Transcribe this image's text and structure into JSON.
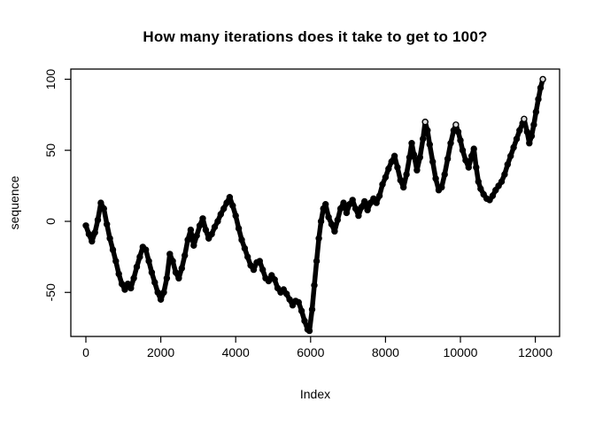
{
  "chart_data": {
    "type": "scatter",
    "title": "How many iterations does it take to get to 100?",
    "xlabel": "Index",
    "ylabel": "sequence",
    "x_ticks": [
      0,
      2000,
      4000,
      6000,
      8000,
      10000,
      12000
    ],
    "y_ticks": [
      -50,
      0,
      50,
      100
    ],
    "xlim": [
      -390,
      12690
    ],
    "ylim": [
      -84,
      107
    ],
    "grid": false,
    "legend_position": "none",
    "marker": "open-circle",
    "point_color": "#000000",
    "background_color": "#ffffff",
    "series": [
      {
        "name": "sequence",
        "points": [
          [
            0,
            -3
          ],
          [
            80,
            -9
          ],
          [
            160,
            -14
          ],
          [
            240,
            -8
          ],
          [
            320,
            1
          ],
          [
            400,
            13
          ],
          [
            480,
            9
          ],
          [
            560,
            -2
          ],
          [
            640,
            -12
          ],
          [
            720,
            -20
          ],
          [
            800,
            -28
          ],
          [
            880,
            -37
          ],
          [
            960,
            -44
          ],
          [
            1040,
            -48
          ],
          [
            1120,
            -44
          ],
          [
            1200,
            -47
          ],
          [
            1280,
            -40
          ],
          [
            1360,
            -32
          ],
          [
            1440,
            -25
          ],
          [
            1520,
            -18
          ],
          [
            1600,
            -20
          ],
          [
            1680,
            -28
          ],
          [
            1760,
            -36
          ],
          [
            1840,
            -43
          ],
          [
            1920,
            -50
          ],
          [
            2000,
            -55
          ],
          [
            2080,
            -50
          ],
          [
            2160,
            -40
          ],
          [
            2240,
            -23
          ],
          [
            2320,
            -28
          ],
          [
            2400,
            -36
          ],
          [
            2480,
            -40
          ],
          [
            2560,
            -33
          ],
          [
            2640,
            -24
          ],
          [
            2720,
            -13
          ],
          [
            2800,
            -6
          ],
          [
            2880,
            -17
          ],
          [
            2960,
            -10
          ],
          [
            3040,
            -3
          ],
          [
            3120,
            2
          ],
          [
            3200,
            -6
          ],
          [
            3280,
            -12
          ],
          [
            3360,
            -9
          ],
          [
            3440,
            -4
          ],
          [
            3520,
            0
          ],
          [
            3600,
            5
          ],
          [
            3680,
            9
          ],
          [
            3760,
            13
          ],
          [
            3840,
            17
          ],
          [
            3920,
            11
          ],
          [
            4000,
            4
          ],
          [
            4080,
            -5
          ],
          [
            4160,
            -13
          ],
          [
            4240,
            -19
          ],
          [
            4320,
            -25
          ],
          [
            4400,
            -31
          ],
          [
            4480,
            -34
          ],
          [
            4560,
            -29
          ],
          [
            4640,
            -28
          ],
          [
            4720,
            -34
          ],
          [
            4800,
            -40
          ],
          [
            4880,
            -42
          ],
          [
            4960,
            -38
          ],
          [
            5040,
            -41
          ],
          [
            5120,
            -47
          ],
          [
            5200,
            -50
          ],
          [
            5280,
            -48
          ],
          [
            5360,
            -51
          ],
          [
            5440,
            -55
          ],
          [
            5520,
            -59
          ],
          [
            5600,
            -56
          ],
          [
            5680,
            -57
          ],
          [
            5760,
            -63
          ],
          [
            5840,
            -70
          ],
          [
            5920,
            -76
          ],
          [
            5970,
            -77
          ],
          [
            6040,
            -62
          ],
          [
            6100,
            -45
          ],
          [
            6160,
            -28
          ],
          [
            6220,
            -12
          ],
          [
            6280,
            0
          ],
          [
            6340,
            9
          ],
          [
            6400,
            12
          ],
          [
            6480,
            3
          ],
          [
            6560,
            -2
          ],
          [
            6640,
            -7
          ],
          [
            6720,
            1
          ],
          [
            6800,
            9
          ],
          [
            6880,
            13
          ],
          [
            6960,
            6
          ],
          [
            7040,
            12
          ],
          [
            7120,
            15
          ],
          [
            7200,
            9
          ],
          [
            7280,
            4
          ],
          [
            7360,
            10
          ],
          [
            7440,
            14
          ],
          [
            7520,
            8
          ],
          [
            7600,
            13
          ],
          [
            7680,
            16
          ],
          [
            7760,
            13
          ],
          [
            7840,
            18
          ],
          [
            7920,
            26
          ],
          [
            8000,
            31
          ],
          [
            8080,
            37
          ],
          [
            8160,
            42
          ],
          [
            8240,
            46
          ],
          [
            8320,
            38
          ],
          [
            8400,
            29
          ],
          [
            8480,
            24
          ],
          [
            8560,
            33
          ],
          [
            8640,
            45
          ],
          [
            8700,
            55
          ],
          [
            8760,
            47
          ],
          [
            8840,
            36
          ],
          [
            8920,
            45
          ],
          [
            9000,
            58
          ],
          [
            9060,
            70
          ],
          [
            9120,
            64
          ],
          [
            9180,
            54
          ],
          [
            9260,
            42
          ],
          [
            9340,
            30
          ],
          [
            9420,
            22
          ],
          [
            9500,
            24
          ],
          [
            9580,
            33
          ],
          [
            9660,
            44
          ],
          [
            9740,
            55
          ],
          [
            9820,
            64
          ],
          [
            9880,
            68
          ],
          [
            9940,
            63
          ],
          [
            10000,
            57
          ],
          [
            10060,
            50
          ],
          [
            10140,
            43
          ],
          [
            10220,
            38
          ],
          [
            10300,
            46
          ],
          [
            10360,
            51
          ],
          [
            10420,
            38
          ],
          [
            10480,
            28
          ],
          [
            10540,
            23
          ],
          [
            10620,
            19
          ],
          [
            10700,
            16
          ],
          [
            10780,
            15
          ],
          [
            10860,
            18
          ],
          [
            10940,
            22
          ],
          [
            11020,
            25
          ],
          [
            11100,
            28
          ],
          [
            11180,
            33
          ],
          [
            11260,
            40
          ],
          [
            11340,
            46
          ],
          [
            11420,
            52
          ],
          [
            11500,
            58
          ],
          [
            11580,
            64
          ],
          [
            11660,
            69
          ],
          [
            11700,
            72
          ],
          [
            11780,
            63
          ],
          [
            11840,
            55
          ],
          [
            11900,
            60
          ],
          [
            11960,
            68
          ],
          [
            12020,
            77
          ],
          [
            12080,
            86
          ],
          [
            12140,
            94
          ],
          [
            12200,
            100
          ]
        ]
      }
    ]
  }
}
